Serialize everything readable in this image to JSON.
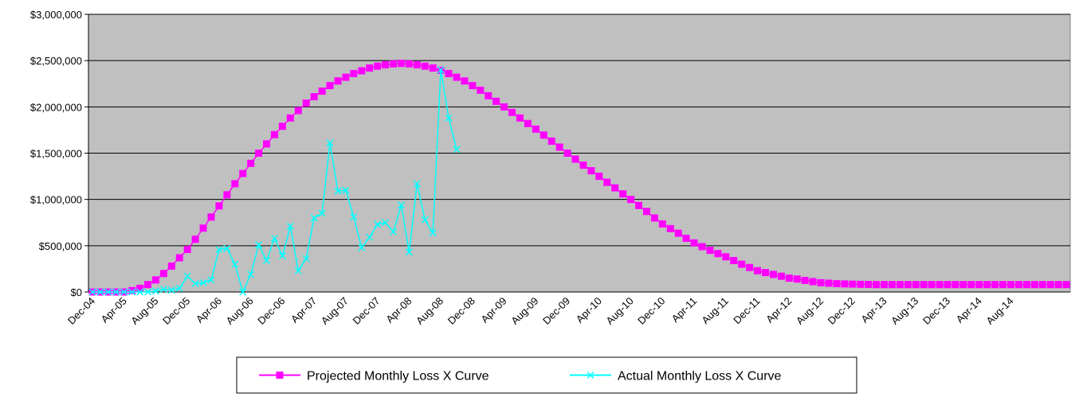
{
  "chart_data": {
    "type": "line",
    "categories": [
      "Dec-04",
      null,
      null,
      null,
      "Apr-05",
      null,
      null,
      null,
      "Aug-05",
      null,
      null,
      null,
      "Dec-05",
      null,
      null,
      null,
      "Apr-06",
      null,
      null,
      null,
      "Aug-06",
      null,
      null,
      null,
      "Dec-06",
      null,
      null,
      null,
      "Apr-07",
      null,
      null,
      null,
      "Aug-07",
      null,
      null,
      null,
      "Dec-07",
      null,
      null,
      null,
      "Apr-08",
      null,
      null,
      null,
      "Aug-08",
      null,
      null,
      null,
      "Dec-08",
      null,
      null,
      null,
      "Apr-09",
      null,
      null,
      null,
      "Aug-09",
      null,
      null,
      null,
      "Dec-09",
      null,
      null,
      null,
      "Apr-10",
      null,
      null,
      null,
      "Aug-10",
      null,
      null,
      null,
      "Dec-10",
      null,
      null,
      null,
      "Apr-11",
      null,
      null,
      null,
      "Aug-11",
      null,
      null,
      null,
      "Dec-11",
      null,
      null,
      null,
      "Apr-12",
      null,
      null,
      null,
      "Aug-12",
      null,
      null,
      null,
      "Dec-12",
      null,
      null,
      null,
      "Apr-13",
      null,
      null,
      null,
      "Aug-13",
      null,
      null,
      null,
      "Dec-13",
      null,
      null,
      null,
      "Apr-14",
      null,
      null,
      null,
      "Aug-14",
      null,
      null,
      null,
      null,
      null,
      null,
      null
    ],
    "series": [
      {
        "name": "Projected Monthly Loss X Curve",
        "color": "#ff00ff",
        "marker": "square",
        "values": [
          0,
          0,
          0,
          0,
          0,
          15000,
          40000,
          80000,
          130000,
          200000,
          280000,
          370000,
          460000,
          570000,
          690000,
          810000,
          930000,
          1050000,
          1170000,
          1280000,
          1390000,
          1500000,
          1600000,
          1700000,
          1790000,
          1880000,
          1960000,
          2040000,
          2110000,
          2170000,
          2230000,
          2280000,
          2320000,
          2360000,
          2390000,
          2420000,
          2440000,
          2455000,
          2465000,
          2470000,
          2465000,
          2455000,
          2440000,
          2420000,
          2395000,
          2360000,
          2320000,
          2280000,
          2230000,
          2180000,
          2120000,
          2060000,
          2000000,
          1940000,
          1880000,
          1820000,
          1760000,
          1695000,
          1630000,
          1565000,
          1500000,
          1435000,
          1370000,
          1310000,
          1250000,
          1185000,
          1125000,
          1060000,
          1000000,
          935000,
          870000,
          800000,
          735000,
          685000,
          635000,
          580000,
          530000,
          490000,
          450000,
          415000,
          380000,
          340000,
          300000,
          265000,
          230000,
          210000,
          190000,
          170000,
          150000,
          140000,
          125000,
          112000,
          100000,
          95000,
          90000,
          87000,
          85000,
          83000,
          82000,
          80000,
          80000,
          80000,
          80000,
          80000,
          80000,
          80000,
          80000,
          80000,
          80000,
          80000,
          80000,
          80000,
          80000,
          80000,
          80000,
          80000,
          80000,
          80000,
          80000,
          80000,
          80000,
          80000,
          80000,
          80000
        ]
      },
      {
        "name": "Actual Monthly Loss X Curve",
        "color": "#00ffff",
        "marker": "x",
        "values": [
          0,
          0,
          0,
          0,
          0,
          0,
          0,
          0,
          10000,
          30000,
          20000,
          40000,
          170000,
          90000,
          100000,
          130000,
          460000,
          470000,
          300000,
          0,
          190000,
          510000,
          340000,
          580000,
          390000,
          710000,
          230000,
          360000,
          800000,
          850000,
          1610000,
          1090000,
          1100000,
          810000,
          480000,
          590000,
          730000,
          750000,
          650000,
          940000,
          430000,
          1170000,
          780000,
          640000,
          2400000,
          1880000,
          1540000,
          null,
          null,
          null,
          null,
          null,
          null,
          null,
          null,
          null,
          null,
          null,
          null,
          null,
          null,
          null,
          null,
          null,
          null,
          null,
          null,
          null,
          null,
          null,
          null,
          null,
          null,
          null,
          null,
          null,
          null,
          null,
          null,
          null,
          null,
          null,
          null,
          null,
          null,
          null,
          null,
          null,
          null,
          null,
          null,
          null,
          null,
          null,
          null,
          null,
          null,
          null,
          null,
          null,
          null,
          null,
          null,
          null,
          null,
          null,
          null,
          null,
          null,
          null,
          null,
          null,
          null,
          null,
          null,
          null,
          null,
          null,
          null,
          null,
          null,
          null,
          null,
          null
        ]
      }
    ],
    "ylim": [
      0,
      3000000
    ],
    "yticks": [
      {
        "value": 0,
        "label": "$0"
      },
      {
        "value": 500000,
        "label": "$500,000"
      },
      {
        "value": 1000000,
        "label": "$1,000,000"
      },
      {
        "value": 1500000,
        "label": "$1,500,000"
      },
      {
        "value": 2000000,
        "label": "$2,000,000"
      },
      {
        "value": 2500000,
        "label": "$2,500,000"
      },
      {
        "value": 3000000,
        "label": "$3,000,000"
      }
    ],
    "grid": true,
    "background": "#c0c0c0",
    "legend": "bottom"
  }
}
